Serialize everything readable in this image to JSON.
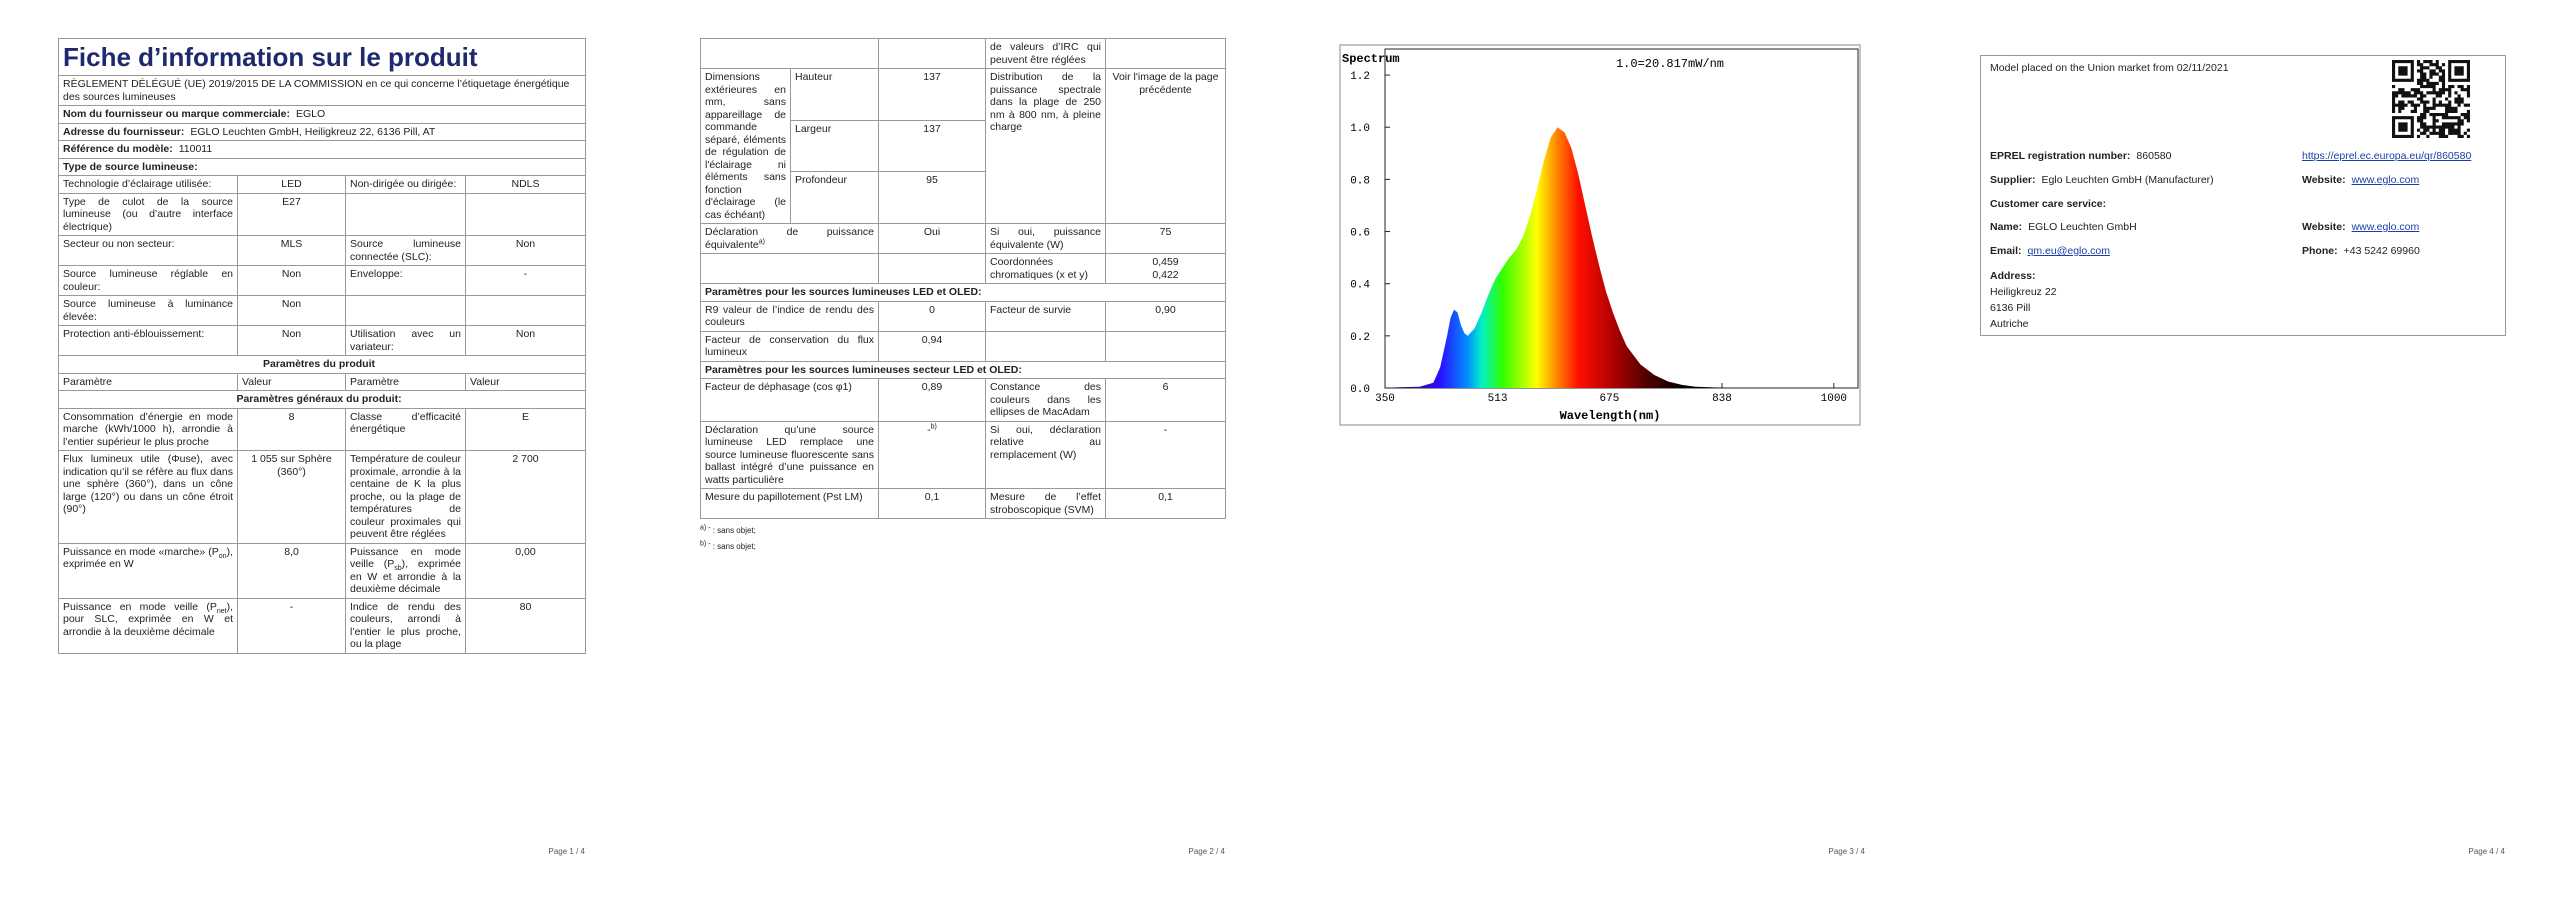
{
  "page1": {
    "title": "Fiche d’information sur le produit",
    "subtitle": "RÈGLEMENT DÉLÉGUÉ (UE) 2019/2015 DE LA COMMISSION en ce qui concerne l’étiquetage énergétique des sources lumineuses",
    "supplier": {
      "label": "Nom du fournisseur ou marque commerciale:",
      "value": "EGLO"
    },
    "address": {
      "label": "Adresse du fournisseur:",
      "value": "EGLO Leuchten GmbH, Heiligkreuz 22, 6136 Pill, AT"
    },
    "model": {
      "label": "Référence du modèle:",
      "value": "110011"
    },
    "source_type": "Type de source lumineuse:",
    "rows": [
      [
        "Technologie d’éclairage utilisée:",
        "LED",
        "Non-dirigée ou dirigée:",
        "NDLS"
      ],
      [
        "Type de culot de la source lumineuse (ou d’autre interface électrique)",
        "E27"
      ],
      [
        "Secteur ou non secteur:",
        "MLS",
        "Source lumineuse connectée (SLC):",
        "Non"
      ],
      [
        "Source lumineuse réglable en couleur:",
        "Non",
        "Enveloppe:",
        "-"
      ],
      [
        "Source lumineuse à luminance élevée:",
        "Non"
      ],
      [
        "Protection anti-éblouissement:",
        "Non",
        "Utilisation avec un variateur:",
        "Non"
      ]
    ],
    "product_params": "Paramètres du produit",
    "header": [
      "Paramètre",
      "Valeur",
      "Paramètre",
      "Valeur"
    ],
    "general_params": "Paramètres généraux du produit:",
    "params": [
      [
        "Consommation d’énergie en mode marche (kWh/1000 h), arrondie à l’entier supérieur le plus proche",
        "8",
        "Classe d’efficacité énergétique",
        "E"
      ],
      [
        "Flux lumineux utile (Φuse), avec indication qu’il se réfère au flux dans une sphère (360°), dans un cône large (120°) ou dans un cône étroit (90°)",
        "1 055 sur Sphère (360°)",
        "Température de couleur proximale, arrondie à la centaine de K la plus proche, ou la plage de températures de couleur proximales qui peuvent être réglées",
        "2 700"
      ],
      [
        [
          "Puissance en mode «marche» (P",
          "on",
          "), exprimée en W"
        ],
        "8,0",
        [
          "Puissance en mode veille (P",
          "sb",
          "), exprimée en W et arrondie à la deuxième décimale"
        ],
        "0,00"
      ],
      [
        [
          "Puissance en mode veille (P",
          "net",
          "), pour SLC, exprimée en W et arrondie à la deuxième décimale"
        ],
        "-",
        "Indice de rendu des couleurs, arrondi à l’entier le plus proche, ou la plage",
        "80"
      ]
    ]
  },
  "page2": {
    "continuation": "de valeurs d’IRC qui peuvent être réglées",
    "dimensions": {
      "label": "Dimensions extérieures en mm, sans appareillage de commande séparé, éléments de régulation de l'éclairage ni éléments sans fonction d'éclairage (le cas échéant)",
      "rows": [
        [
          "Hauteur",
          "137"
        ],
        [
          "Largeur",
          "137"
        ],
        [
          "Profondeur",
          "95"
        ]
      ],
      "distribution": "Distribution de la puissance spectrale dans la plage de 250 nm à 800 nm, à pleine charge",
      "see": "Voir l'image de la page précédente"
    },
    "equivalent": [
      [
        [
          "Déclaration de puissance équivalente",
          "a)"
        ],
        "Oui",
        "Si oui, puissance équivalente (W)",
        "75"
      ]
    ],
    "chromaticity": {
      "label": "Coordonnées chromatiques (x et y)",
      "values": [
        "0,459",
        "0,422"
      ]
    },
    "led_heading": "Paramètres pour les sources lumineuses LED et OLED:",
    "led_rows": [
      [
        "R9 valeur de l’indice de rendu des couleurs",
        "0",
        "Facteur de survie",
        "0,90"
      ],
      [
        "Facteur de conservation du flux lumineux",
        "0,94"
      ]
    ],
    "mains_heading": "Paramètres pour les sources lumineuses secteur LED et OLED:",
    "mains_rows": [
      [
        "Facteur de déphasage (cos φ1)",
        "0,89",
        "Constance des couleurs dans les ellipses de MacAdam",
        "6"
      ],
      [
        "Déclaration qu’une source lumineuse LED remplace une source lumineuse fluorescente sans ballast intégré d’une puissance en watts particulière",
        [
          "-",
          "b)"
        ],
        "Si oui, déclaration relative au remplacement (W)",
        "-"
      ],
      [
        "Mesure du papillotement (Pst LM)",
        "0,1",
        "Mesure de l’effet stroboscopique (SVM)",
        "0,1"
      ]
    ],
    "footnotes": [
      [
        "a) -",
        " : sans objet;"
      ],
      [
        "b) -",
        " : sans objet;"
      ]
    ]
  },
  "chart_data": {
    "type": "area",
    "title": "Spectrum",
    "annotation": "1.0=20.817mW/nm",
    "x_label": "Wavelength(nm)",
    "x": [
      350,
      370,
      400,
      420,
      430,
      440,
      445,
      450,
      455,
      460,
      465,
      470,
      480,
      490,
      500,
      510,
      520,
      530,
      540,
      550,
      560,
      570,
      580,
      590,
      600,
      610,
      620,
      630,
      640,
      650,
      660,
      670,
      680,
      690,
      700,
      720,
      740,
      760,
      780,
      800,
      850
    ],
    "values": [
      0,
      0.003,
      0.005,
      0.02,
      0.08,
      0.2,
      0.27,
      0.3,
      0.29,
      0.24,
      0.21,
      0.2,
      0.23,
      0.29,
      0.36,
      0.42,
      0.46,
      0.5,
      0.53,
      0.58,
      0.66,
      0.76,
      0.87,
      0.96,
      1.0,
      0.98,
      0.92,
      0.82,
      0.7,
      0.58,
      0.47,
      0.37,
      0.29,
      0.22,
      0.16,
      0.09,
      0.05,
      0.025,
      0.012,
      0.005,
      0
    ],
    "xlim": [
      350,
      1035
    ],
    "ylim": [
      0,
      1.3
    ],
    "xticks": [
      350,
      513,
      675,
      838,
      1000
    ],
    "yticks": [
      {
        "value": 0,
        "label": "0.0"
      },
      0.2,
      0.4,
      0.6,
      0.8,
      {
        "value": 1,
        "label": "1.0"
      },
      1.2
    ]
  },
  "page4": {
    "market": "Model placed on the Union market from 02/11/2021",
    "eprel": {
      "label": "EPREL registration number:",
      "value": "860580",
      "link": "https://eprel.ec.europa.eu/qr/860580"
    },
    "supplier": {
      "label": "Supplier:",
      "value": "Eglo Leuchten GmbH (Manufacturer)"
    },
    "website": {
      "label": "Website:",
      "value": "www.eglo.com"
    },
    "care": "Customer care service:",
    "name": {
      "label": "Name:",
      "value": "EGLO Leuchten GmbH"
    },
    "care_website": {
      "label": "Website:",
      "value": "www.eglo.com"
    },
    "email": {
      "label": "Email:",
      "value": "qm.eu@eglo.com"
    },
    "phone": {
      "label": "Phone:",
      "value": "+43 5242 69960"
    },
    "address": {
      "label": "Address:",
      "lines": [
        "Heiligkreuz 22",
        "6136 Pill",
        "Autriche"
      ]
    }
  },
  "footers": [
    "Page 1 / 4",
    "Page 2 / 4",
    "Page 3 / 4",
    "Page 4 / 4"
  ]
}
